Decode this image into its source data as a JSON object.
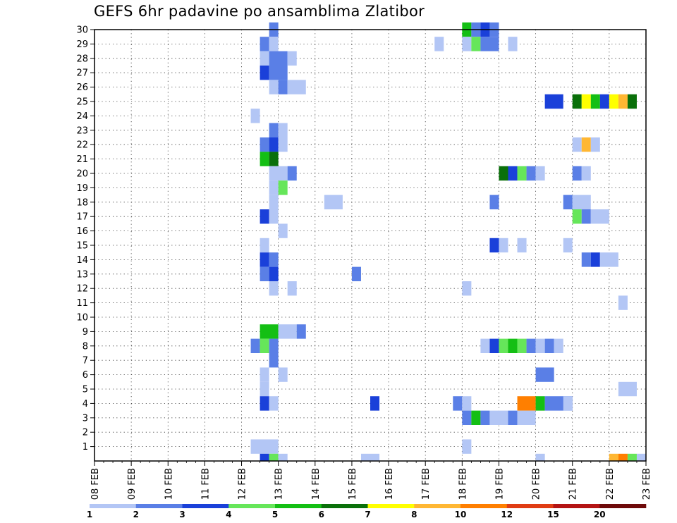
{
  "chart_data": {
    "type": "heatmap",
    "title": "GEFS 6hr padavine po ansamblima Zlatibor",
    "xlabel": "",
    "ylabel": "",
    "x_ticks": [
      "08 FEB",
      "09 FEB",
      "10 FEB",
      "11 FEB",
      "12 FEB",
      "13 FEB",
      "14 FEB",
      "15 FEB",
      "16 FEB",
      "17 FEB",
      "18 FEB",
      "19 FEB",
      "20 FEB",
      "21 FEB",
      "22 FEB",
      "23 FEB"
    ],
    "y_ticks": [
      1,
      2,
      3,
      4,
      5,
      6,
      7,
      8,
      9,
      10,
      11,
      12,
      13,
      14,
      15,
      16,
      17,
      18,
      19,
      20,
      21,
      22,
      23,
      24,
      25,
      26,
      27,
      28,
      29,
      30
    ],
    "x_range_days": [
      0,
      15
    ],
    "y_range": [
      0,
      30
    ],
    "grid": true,
    "legend_position": "bottom",
    "colorbar": {
      "labels": [
        "1",
        "2",
        "3",
        "4",
        "5",
        "6",
        "7",
        "8",
        "10",
        "12",
        "15",
        "20"
      ],
      "colors": [
        "#b3c6f5",
        "#5a7fe6",
        "#1a40d9",
        "#66e65a",
        "#14bf14",
        "#0a700a",
        "#ffff00",
        "#ffb733",
        "#ff7f00",
        "#e03c14",
        "#b41414",
        "#6e0a0a"
      ]
    },
    "cell_step_days": 0.25,
    "cells_note": "each cell: [member, start_day_after_08FEB, level_index_into_colors, span_days]",
    "cells": [
      [
        30,
        4.75,
        1,
        0.25
      ],
      [
        30,
        10.0,
        4,
        0.25
      ],
      [
        30,
        10.25,
        1,
        0.25
      ],
      [
        30,
        10.5,
        2,
        0.25
      ],
      [
        30,
        10.75,
        1,
        0.25
      ],
      [
        29,
        4.5,
        1,
        0.25
      ],
      [
        29,
        4.75,
        0,
        0.25
      ],
      [
        29,
        9.25,
        0,
        0.25
      ],
      [
        29,
        10.0,
        0,
        0.25
      ],
      [
        29,
        10.25,
        3,
        0.25
      ],
      [
        29,
        10.5,
        1,
        0.5
      ],
      [
        29,
        11.25,
        0,
        0.25
      ],
      [
        28,
        4.5,
        0,
        0.25
      ],
      [
        28,
        4.75,
        1,
        0.5
      ],
      [
        28,
        5.25,
        0,
        0.25
      ],
      [
        27,
        4.5,
        2,
        0.25
      ],
      [
        27,
        4.75,
        1,
        0.5
      ],
      [
        26,
        4.75,
        0,
        0.25
      ],
      [
        26,
        5.0,
        1,
        0.25
      ],
      [
        26,
        5.25,
        0,
        0.5
      ],
      [
        25,
        12.25,
        2,
        0.5
      ],
      [
        25,
        13.0,
        5,
        0.25
      ],
      [
        25,
        13.25,
        6,
        0.25
      ],
      [
        25,
        13.5,
        4,
        0.25
      ],
      [
        25,
        13.75,
        2,
        0.25
      ],
      [
        25,
        14.0,
        6,
        0.25
      ],
      [
        25,
        14.25,
        7,
        0.25
      ],
      [
        25,
        14.5,
        5,
        0.25
      ],
      [
        24,
        4.25,
        0,
        0.25
      ],
      [
        23,
        4.75,
        1,
        0.25
      ],
      [
        23,
        5.0,
        0,
        0.25
      ],
      [
        22,
        4.5,
        1,
        0.25
      ],
      [
        22,
        4.75,
        2,
        0.25
      ],
      [
        22,
        5.0,
        0,
        0.25
      ],
      [
        22,
        13.0,
        0,
        0.25
      ],
      [
        22,
        13.25,
        7,
        0.25
      ],
      [
        22,
        13.5,
        0,
        0.25
      ],
      [
        21,
        4.5,
        4,
        0.25
      ],
      [
        21,
        4.75,
        5,
        0.25
      ],
      [
        20,
        4.75,
        0,
        0.5
      ],
      [
        20,
        5.25,
        1,
        0.25
      ],
      [
        20,
        11.0,
        5,
        0.25
      ],
      [
        20,
        11.25,
        2,
        0.25
      ],
      [
        20,
        11.5,
        3,
        0.25
      ],
      [
        20,
        11.75,
        1,
        0.25
      ],
      [
        20,
        12.0,
        0,
        0.25
      ],
      [
        20,
        13.0,
        1,
        0.25
      ],
      [
        20,
        13.25,
        0,
        0.25
      ],
      [
        19,
        4.75,
        0,
        0.25
      ],
      [
        19,
        5.0,
        3,
        0.25
      ],
      [
        18,
        4.75,
        0,
        0.25
      ],
      [
        18,
        6.25,
        0,
        0.5
      ],
      [
        18,
        10.75,
        1,
        0.25
      ],
      [
        18,
        12.75,
        1,
        0.25
      ],
      [
        18,
        13.0,
        0,
        0.5
      ],
      [
        17,
        4.5,
        2,
        0.25
      ],
      [
        17,
        4.75,
        0,
        0.25
      ],
      [
        17,
        13.0,
        3,
        0.25
      ],
      [
        17,
        13.25,
        1,
        0.25
      ],
      [
        17,
        13.5,
        0,
        0.5
      ],
      [
        16,
        5.0,
        0,
        0.25
      ],
      [
        15,
        4.5,
        0,
        0.25
      ],
      [
        15,
        10.75,
        2,
        0.25
      ],
      [
        15,
        11.0,
        0,
        0.25
      ],
      [
        15,
        11.5,
        0,
        0.25
      ],
      [
        15,
        12.75,
        0,
        0.25
      ],
      [
        14,
        4.5,
        2,
        0.25
      ],
      [
        14,
        4.75,
        1,
        0.25
      ],
      [
        14,
        13.25,
        1,
        0.25
      ],
      [
        14,
        13.5,
        2,
        0.25
      ],
      [
        14,
        13.75,
        0,
        0.5
      ],
      [
        13,
        4.5,
        1,
        0.25
      ],
      [
        13,
        4.75,
        2,
        0.25
      ],
      [
        13,
        7.0,
        1,
        0.25
      ],
      [
        12,
        4.75,
        0,
        0.25
      ],
      [
        12,
        5.25,
        0,
        0.25
      ],
      [
        12,
        10.0,
        0,
        0.25
      ],
      [
        11,
        14.25,
        0,
        0.25
      ],
      [
        9,
        4.5,
        4,
        0.5
      ],
      [
        9,
        5.0,
        0,
        0.5
      ],
      [
        9,
        5.5,
        1,
        0.25
      ],
      [
        8,
        4.25,
        1,
        0.25
      ],
      [
        8,
        4.5,
        3,
        0.25
      ],
      [
        8,
        4.75,
        1,
        0.25
      ],
      [
        8,
        10.5,
        0,
        0.25
      ],
      [
        8,
        10.75,
        2,
        0.25
      ],
      [
        8,
        11.0,
        3,
        0.25
      ],
      [
        8,
        11.25,
        4,
        0.25
      ],
      [
        8,
        11.5,
        3,
        0.25
      ],
      [
        8,
        11.75,
        1,
        0.25
      ],
      [
        8,
        12.0,
        0,
        0.25
      ],
      [
        8,
        12.25,
        1,
        0.25
      ],
      [
        8,
        12.5,
        0,
        0.25
      ],
      [
        7,
        4.75,
        1,
        0.25
      ],
      [
        6,
        4.5,
        0,
        0.25
      ],
      [
        6,
        5.0,
        0,
        0.25
      ],
      [
        6,
        12.0,
        1,
        0.5
      ],
      [
        5,
        4.5,
        0,
        0.25
      ],
      [
        5,
        14.25,
        0,
        0.5
      ],
      [
        4,
        4.5,
        2,
        0.25
      ],
      [
        4,
        4.75,
        0,
        0.25
      ],
      [
        4,
        7.5,
        2,
        0.25
      ],
      [
        4,
        9.75,
        1,
        0.25
      ],
      [
        4,
        10.0,
        0,
        0.25
      ],
      [
        4,
        11.5,
        8,
        0.5
      ],
      [
        4,
        12.0,
        4,
        0.25
      ],
      [
        4,
        12.25,
        1,
        0.75
      ],
      [
        4,
        12.75,
        0,
        0.25
      ],
      [
        3,
        10.0,
        1,
        0.25
      ],
      [
        3,
        10.25,
        4,
        0.25
      ],
      [
        3,
        10.5,
        1,
        0.25
      ],
      [
        3,
        10.75,
        0,
        0.5
      ],
      [
        3,
        11.25,
        1,
        0.25
      ],
      [
        3,
        11.5,
        0,
        0.5
      ],
      [
        1,
        4.25,
        0,
        0.75
      ],
      [
        1,
        10.0,
        0,
        0.25
      ],
      [
        0,
        4.5,
        2,
        0.25
      ],
      [
        0,
        4.75,
        3,
        0.25
      ],
      [
        0,
        5.0,
        0,
        0.25
      ],
      [
        0,
        7.25,
        0,
        0.5
      ],
      [
        0,
        12.0,
        0,
        0.25
      ],
      [
        0,
        14.0,
        7,
        0.25
      ],
      [
        0,
        14.25,
        8,
        0.25
      ],
      [
        0,
        14.5,
        3,
        0.25
      ],
      [
        0,
        14.75,
        0,
        0.25
      ]
    ]
  }
}
